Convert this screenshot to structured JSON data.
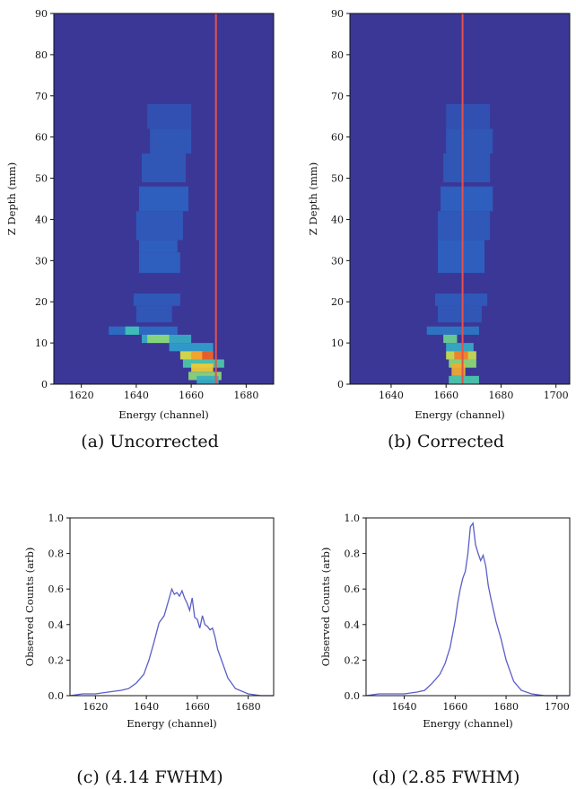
{
  "colors": {
    "heatmap_background": "#3b3796",
    "heatmap_scale": [
      "#3b3796",
      "#2e5fc0",
      "#2f9ad0",
      "#3fc7b5",
      "#9bdc6b",
      "#f2e238",
      "#f28a2a",
      "#e03a2a"
    ],
    "reference_line": "#e8514a",
    "spectrum_line": "#5a5fc8"
  },
  "chart_data": [
    {
      "id": "a",
      "type": "heatmap",
      "caption": "(a) Uncorrected",
      "xlabel": "Energy (channel)",
      "ylabel": "Z Depth (mm)",
      "xlim": [
        1610,
        1690
      ],
      "ylim": [
        0,
        90
      ],
      "xticks": [
        1620,
        1640,
        1660,
        1680
      ],
      "yticks": [
        0,
        10,
        20,
        30,
        40,
        50,
        60,
        70,
        80,
        90
      ],
      "reference_line_x": 1669,
      "cells": [
        {
          "x": [
            1644,
            1660
          ],
          "y": [
            62,
            68
          ],
          "v": 0.1
        },
        {
          "x": [
            1645,
            1660
          ],
          "y": [
            56,
            62
          ],
          "v": 0.12
        },
        {
          "x": [
            1642,
            1658
          ],
          "y": [
            49,
            56
          ],
          "v": 0.12
        },
        {
          "x": [
            1641,
            1659
          ],
          "y": [
            42,
            48
          ],
          "v": 0.15
        },
        {
          "x": [
            1640,
            1657
          ],
          "y": [
            35,
            42
          ],
          "v": 0.13
        },
        {
          "x": [
            1641,
            1655
          ],
          "y": [
            32,
            35
          ],
          "v": 0.15
        },
        {
          "x": [
            1641,
            1656
          ],
          "y": [
            27,
            32
          ],
          "v": 0.15
        },
        {
          "x": [
            1639,
            1656
          ],
          "y": [
            19,
            22
          ],
          "v": 0.13
        },
        {
          "x": [
            1640,
            1653
          ],
          "y": [
            15,
            19
          ],
          "v": 0.12
        },
        {
          "x": [
            1630,
            1655
          ],
          "y": [
            12,
            14
          ],
          "v": 0.18
        },
        {
          "x": [
            1636,
            1641
          ],
          "y": [
            12,
            14
          ],
          "v": 0.42
        },
        {
          "x": [
            1642,
            1660
          ],
          "y": [
            10,
            12
          ],
          "v": 0.35
        },
        {
          "x": [
            1644,
            1652
          ],
          "y": [
            10,
            12
          ],
          "v": 0.55
        },
        {
          "x": [
            1652,
            1668
          ],
          "y": [
            8,
            10
          ],
          "v": 0.3
        },
        {
          "x": [
            1656,
            1668
          ],
          "y": [
            6,
            8
          ],
          "v": 0.68
        },
        {
          "x": [
            1660,
            1666
          ],
          "y": [
            6,
            8
          ],
          "v": 0.82
        },
        {
          "x": [
            1664,
            1668
          ],
          "y": [
            6,
            8
          ],
          "v": 0.95
        },
        {
          "x": [
            1657,
            1672
          ],
          "y": [
            4,
            6
          ],
          "v": 0.45
        },
        {
          "x": [
            1660,
            1668
          ],
          "y": [
            3,
            5
          ],
          "v": 0.75
        },
        {
          "x": [
            1659,
            1671
          ],
          "y": [
            1,
            3
          ],
          "v": 0.55
        },
        {
          "x": [
            1662,
            1670
          ],
          "y": [
            0,
            2
          ],
          "v": 0.35
        }
      ]
    },
    {
      "id": "b",
      "type": "heatmap",
      "caption": "(b) Corrected",
      "xlabel": "Energy (channel)",
      "ylabel": "Z Depth (mm)",
      "xlim": [
        1625,
        1705
      ],
      "ylim": [
        0,
        90
      ],
      "xticks": [
        1640,
        1660,
        1680,
        1700
      ],
      "yticks": [
        0,
        10,
        20,
        30,
        40,
        50,
        60,
        70,
        80,
        90
      ],
      "reference_line_x": 1666,
      "cells": [
        {
          "x": [
            1660,
            1676
          ],
          "y": [
            62,
            68
          ],
          "v": 0.1
        },
        {
          "x": [
            1660,
            1677
          ],
          "y": [
            56,
            62
          ],
          "v": 0.12
        },
        {
          "x": [
            1659,
            1676
          ],
          "y": [
            49,
            56
          ],
          "v": 0.12
        },
        {
          "x": [
            1658,
            1677
          ],
          "y": [
            42,
            48
          ],
          "v": 0.15
        },
        {
          "x": [
            1657,
            1676
          ],
          "y": [
            35,
            42
          ],
          "v": 0.13
        },
        {
          "x": [
            1657,
            1674
          ],
          "y": [
            27,
            35
          ],
          "v": 0.15
        },
        {
          "x": [
            1656,
            1675
          ],
          "y": [
            19,
            22
          ],
          "v": 0.13
        },
        {
          "x": [
            1657,
            1673
          ],
          "y": [
            15,
            19
          ],
          "v": 0.12
        },
        {
          "x": [
            1653,
            1672
          ],
          "y": [
            12,
            14
          ],
          "v": 0.2
        },
        {
          "x": [
            1659,
            1664
          ],
          "y": [
            10,
            12
          ],
          "v": 0.5
        },
        {
          "x": [
            1660,
            1670
          ],
          "y": [
            8,
            10
          ],
          "v": 0.35
        },
        {
          "x": [
            1660,
            1671
          ],
          "y": [
            6,
            8
          ],
          "v": 0.65
        },
        {
          "x": [
            1663,
            1668
          ],
          "y": [
            6,
            8
          ],
          "v": 0.88
        },
        {
          "x": [
            1661,
            1671
          ],
          "y": [
            4,
            6
          ],
          "v": 0.55
        },
        {
          "x": [
            1662,
            1667
          ],
          "y": [
            2,
            5
          ],
          "v": 0.8
        },
        {
          "x": [
            1661,
            1672
          ],
          "y": [
            0,
            2
          ],
          "v": 0.45
        }
      ]
    },
    {
      "id": "c",
      "type": "line",
      "caption": "(c) (4.14 FWHM)",
      "xlabel": "Energy (channel)",
      "ylabel": "Observed Counts (arb)",
      "xlim": [
        1610,
        1690
      ],
      "ylim": [
        0,
        1.0
      ],
      "xticks": [
        1620,
        1640,
        1660,
        1680
      ],
      "yticks": [
        0.0,
        0.2,
        0.4,
        0.6,
        0.8,
        1.0
      ],
      "x": [
        1610,
        1615,
        1620,
        1625,
        1630,
        1633,
        1636,
        1639,
        1641,
        1643,
        1645,
        1647,
        1649,
        1650,
        1651,
        1652,
        1653,
        1654,
        1655,
        1656,
        1657,
        1658,
        1659,
        1660,
        1661,
        1662,
        1663,
        1664,
        1665,
        1666,
        1667,
        1668,
        1670,
        1672,
        1675,
        1680,
        1685,
        1690
      ],
      "y": [
        0.0,
        0.01,
        0.01,
        0.02,
        0.03,
        0.04,
        0.07,
        0.12,
        0.2,
        0.3,
        0.41,
        0.45,
        0.55,
        0.6,
        0.57,
        0.58,
        0.56,
        0.59,
        0.55,
        0.52,
        0.48,
        0.55,
        0.44,
        0.43,
        0.38,
        0.45,
        0.4,
        0.39,
        0.37,
        0.38,
        0.33,
        0.26,
        0.18,
        0.1,
        0.04,
        0.01,
        0.0,
        0.0
      ]
    },
    {
      "id": "d",
      "type": "line",
      "caption": "(d) (2.85 FWHM)",
      "xlabel": "Energy (channel)",
      "ylabel": "Observed Counts (arb)",
      "xlim": [
        1625,
        1705
      ],
      "ylim": [
        0,
        1.0
      ],
      "xticks": [
        1640,
        1660,
        1680,
        1700
      ],
      "yticks": [
        0.0,
        0.2,
        0.4,
        0.6,
        0.8,
        1.0
      ],
      "x": [
        1625,
        1630,
        1635,
        1640,
        1645,
        1648,
        1651,
        1654,
        1656,
        1658,
        1660,
        1661,
        1662,
        1663,
        1664,
        1665,
        1666,
        1667,
        1668,
        1669,
        1670,
        1671,
        1672,
        1673,
        1674,
        1676,
        1678,
        1680,
        1683,
        1686,
        1690,
        1695,
        1705
      ],
      "y": [
        0.0,
        0.01,
        0.01,
        0.01,
        0.02,
        0.03,
        0.07,
        0.12,
        0.18,
        0.27,
        0.42,
        0.52,
        0.6,
        0.66,
        0.7,
        0.8,
        0.95,
        0.97,
        0.85,
        0.8,
        0.76,
        0.79,
        0.73,
        0.62,
        0.55,
        0.42,
        0.32,
        0.2,
        0.08,
        0.03,
        0.01,
        0.0,
        0.0
      ]
    }
  ]
}
